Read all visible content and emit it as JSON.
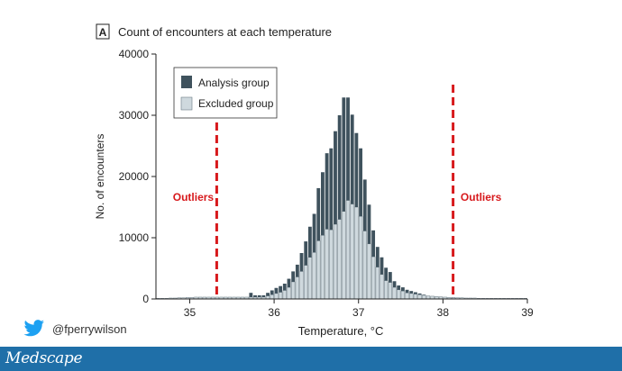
{
  "chart_data": {
    "type": "bar",
    "panel_label": "A",
    "title": "Count of encounters at each temperature",
    "xlabel": "Temperature, °C",
    "ylabel": "No. of encounters",
    "xlim": [
      34.6,
      39.0
    ],
    "ylim": [
      0,
      40000
    ],
    "xticks": [
      "35",
      "36",
      "37",
      "38",
      "39"
    ],
    "xtick_values": [
      35,
      36,
      37,
      38,
      39
    ],
    "yticks": [
      "0",
      "10000",
      "20000",
      "30000",
      "40000"
    ],
    "ytick_values": [
      0,
      10000,
      20000,
      30000,
      40000
    ],
    "bin_width": 0.05,
    "stacked": true,
    "legend": {
      "placement": "top-left"
    },
    "series": [
      {
        "name": "Analysis group",
        "color": "#3f525d",
        "values": [
          0,
          0,
          0,
          0,
          0,
          0,
          0,
          0,
          0,
          0,
          0,
          0,
          0,
          0,
          0,
          0,
          0,
          0,
          0,
          0,
          0,
          0,
          700,
          300,
          300,
          300,
          500,
          700,
          900,
          1000,
          1100,
          1400,
          1700,
          2000,
          3000,
          3900,
          5000,
          6300,
          8600,
          10300,
          12400,
          13300,
          15200,
          17000,
          18600,
          16800,
          14600,
          12100,
          11100,
          8400,
          6400,
          4300,
          3300,
          2800,
          2100,
          1700,
          1000,
          700,
          600,
          500,
          400,
          300,
          200,
          100,
          0,
          0,
          0,
          0,
          0,
          0,
          0,
          0,
          0,
          0,
          0,
          0,
          0,
          0,
          0,
          0,
          0,
          0,
          0,
          0,
          0,
          0,
          0,
          0
        ]
      },
      {
        "name": "Excluded group",
        "color": "#cfd9de",
        "values": [
          100,
          100,
          100,
          150,
          150,
          200,
          200,
          250,
          250,
          300,
          300,
          300,
          300,
          300,
          300,
          300,
          300,
          300,
          300,
          300,
          300,
          300,
          300,
          300,
          300,
          300,
          500,
          700,
          900,
          1100,
          1400,
          1900,
          2800,
          3600,
          4500,
          5500,
          6800,
          7600,
          9500,
          10400,
          11400,
          11300,
          12200,
          13000,
          14300,
          16100,
          15500,
          15000,
          13500,
          11100,
          9000,
          6900,
          5200,
          4000,
          3000,
          2700,
          1900,
          1500,
          1300,
          1000,
          900,
          800,
          700,
          600,
          500,
          450,
          400,
          350,
          300,
          250,
          250,
          200,
          200,
          150,
          150,
          150,
          100,
          100,
          100,
          100,
          100,
          100,
          100,
          100,
          100,
          100,
          100,
          100
        ]
      }
    ],
    "annotations": [
      {
        "text": "Outliers",
        "x": 35.32,
        "label_side": "left",
        "color": "#d7191c"
      },
      {
        "text": "Outliers",
        "x": 38.12,
        "label_side": "right",
        "color": "#d7191c"
      }
    ]
  },
  "footer": {
    "twitter_icon": "twitter-bird-icon",
    "twitter_handle": "@fperrywilson",
    "logo_text": "Medscape",
    "background": "#1f6fa8"
  }
}
